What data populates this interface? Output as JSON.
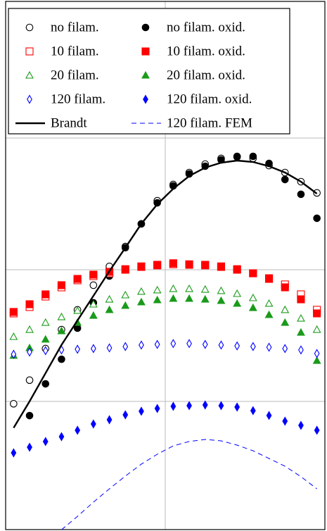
{
  "chart_data": {
    "type": "scatter",
    "x": [
      0.05,
      0.15,
      0.25,
      0.35,
      0.45,
      0.55,
      0.65,
      0.75,
      0.85,
      0.95,
      1.05,
      1.15,
      1.25,
      1.35,
      1.45,
      1.55,
      1.65,
      1.75,
      1.85,
      1.95
    ],
    "xlim": [
      0,
      2
    ],
    "xticks": [
      1
    ],
    "ylim": [
      0.1,
      1000
    ],
    "yticks": [
      1,
      10,
      100
    ],
    "log_y": true,
    "grid": true,
    "legend": "upper left",
    "series": [
      {
        "name": "no filam.",
        "color": "#000000",
        "marker": "circle",
        "filled": false,
        "values": [
          0.96,
          1.45,
          2.52,
          3.51,
          4.96,
          7.63,
          10.6,
          15.0,
          22.3,
          33.4,
          44.4,
          54.7,
          63.4,
          70.0,
          71.8,
          70.0,
          61.8,
          54.7,
          46.6,
          38.3
        ]
      },
      {
        "name": "no filam. oxid.",
        "color": "#000000",
        "marker": "circle",
        "filled": true,
        "values": [
          null,
          0.78,
          1.36,
          2.09,
          3.6,
          5.61,
          8.95,
          14.7,
          22.3,
          32.2,
          43.3,
          53.4,
          61.1,
          68.3,
          72.6,
          72.6,
          64.2,
          48.4,
          37.4,
          24.6
        ]
      },
      {
        "name": "10 filam.",
        "color": "#ff0000",
        "marker": "square",
        "filled": false,
        "values": [
          4.66,
          5.21,
          6.26,
          7.35,
          8.32,
          8.95,
          9.4,
          10.0,
          10.5,
          10.8,
          11.0,
          10.9,
          10.8,
          10.5,
          10.0,
          9.4,
          8.62,
          7.73,
          6.5,
          4.96
        ]
      },
      {
        "name": "10 filam. oxid.",
        "color": "#ff0000",
        "marker": "square",
        "filled": true,
        "values": [
          4.78,
          5.47,
          6.5,
          7.63,
          8.52,
          9.18,
          9.64,
          10.1,
          10.6,
          10.9,
          11.2,
          11.0,
          10.9,
          10.6,
          10.1,
          9.4,
          8.52,
          7.35,
          5.96,
          4.66
        ]
      },
      {
        "name": "20 filam.",
        "color": "#1a9a1a",
        "marker": "triangle",
        "filled": false,
        "values": [
          3.1,
          3.51,
          3.97,
          4.38,
          4.89,
          5.47,
          5.96,
          6.42,
          6.83,
          7.0,
          7.17,
          7.17,
          7.08,
          6.92,
          6.58,
          6.11,
          5.54,
          4.96,
          4.27,
          3.51
        ]
      },
      {
        "name": "20 filam. oxid.",
        "color": "#1a9a1a",
        "marker": "triangle",
        "filled": true,
        "values": [
          2.23,
          2.55,
          2.96,
          3.43,
          3.97,
          4.49,
          4.96,
          5.34,
          5.68,
          5.89,
          6.04,
          6.04,
          5.96,
          5.82,
          5.54,
          5.14,
          4.55,
          3.97,
          3.34,
          2.04
        ]
      },
      {
        "name": "120 filam.",
        "color": "#0000ff",
        "marker": "diamond",
        "filled": false,
        "values": [
          2.28,
          2.37,
          2.43,
          2.46,
          2.49,
          2.52,
          2.55,
          2.61,
          2.68,
          2.71,
          2.75,
          2.75,
          2.71,
          2.68,
          2.64,
          2.61,
          2.58,
          2.52,
          2.46,
          2.31
        ]
      },
      {
        "name": "120 filam. oxid.",
        "color": "#0000ff",
        "marker": "diamond",
        "filled": true,
        "values": [
          0.407,
          0.449,
          0.496,
          0.54,
          0.604,
          0.674,
          0.726,
          0.791,
          0.842,
          0.884,
          0.918,
          0.929,
          0.94,
          0.929,
          0.906,
          0.851,
          0.782,
          0.708,
          0.658,
          0.604
        ]
      },
      {
        "name": "Brandt",
        "color": "#000000",
        "line": "solid",
        "values": [
          0.63,
          1.0,
          1.64,
          2.68,
          4.12,
          6.34,
          9.76,
          14.7,
          22.3,
          31.4,
          41.2,
          51.4,
          59.6,
          65.0,
          67.4,
          65.8,
          61.1,
          54.7,
          46.6,
          37.8
        ]
      },
      {
        "name": "120 filam. FEM",
        "color": "#0000ff",
        "line": "dashed",
        "values": [
          null,
          null,
          null,
          0.106,
          0.134,
          0.172,
          0.217,
          0.271,
          0.334,
          0.397,
          0.46,
          0.496,
          0.514,
          0.502,
          0.466,
          0.422,
          0.369,
          0.322,
          0.268,
          0.217
        ]
      }
    ]
  }
}
